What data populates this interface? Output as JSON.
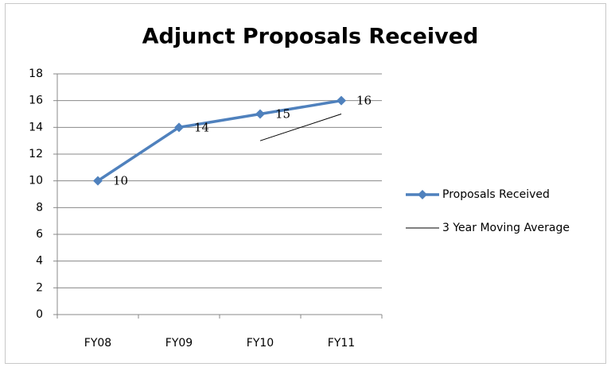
{
  "chart_data": {
    "type": "line",
    "title": "Adjunct Proposals Received",
    "categories": [
      "FY08",
      "FY09",
      "FY10",
      "FY11"
    ],
    "series": [
      {
        "name": "Proposals Received",
        "color": "#4f81bd",
        "values": [
          10,
          14,
          15,
          16
        ]
      },
      {
        "name": "3 Year Moving Average",
        "color": "#000000",
        "values": [
          null,
          null,
          13,
          15
        ]
      }
    ],
    "ylim": [
      0,
      18
    ],
    "yticks": [
      0,
      2,
      4,
      6,
      8,
      10,
      12,
      14,
      16,
      18
    ],
    "grid": true,
    "legend": "right"
  }
}
